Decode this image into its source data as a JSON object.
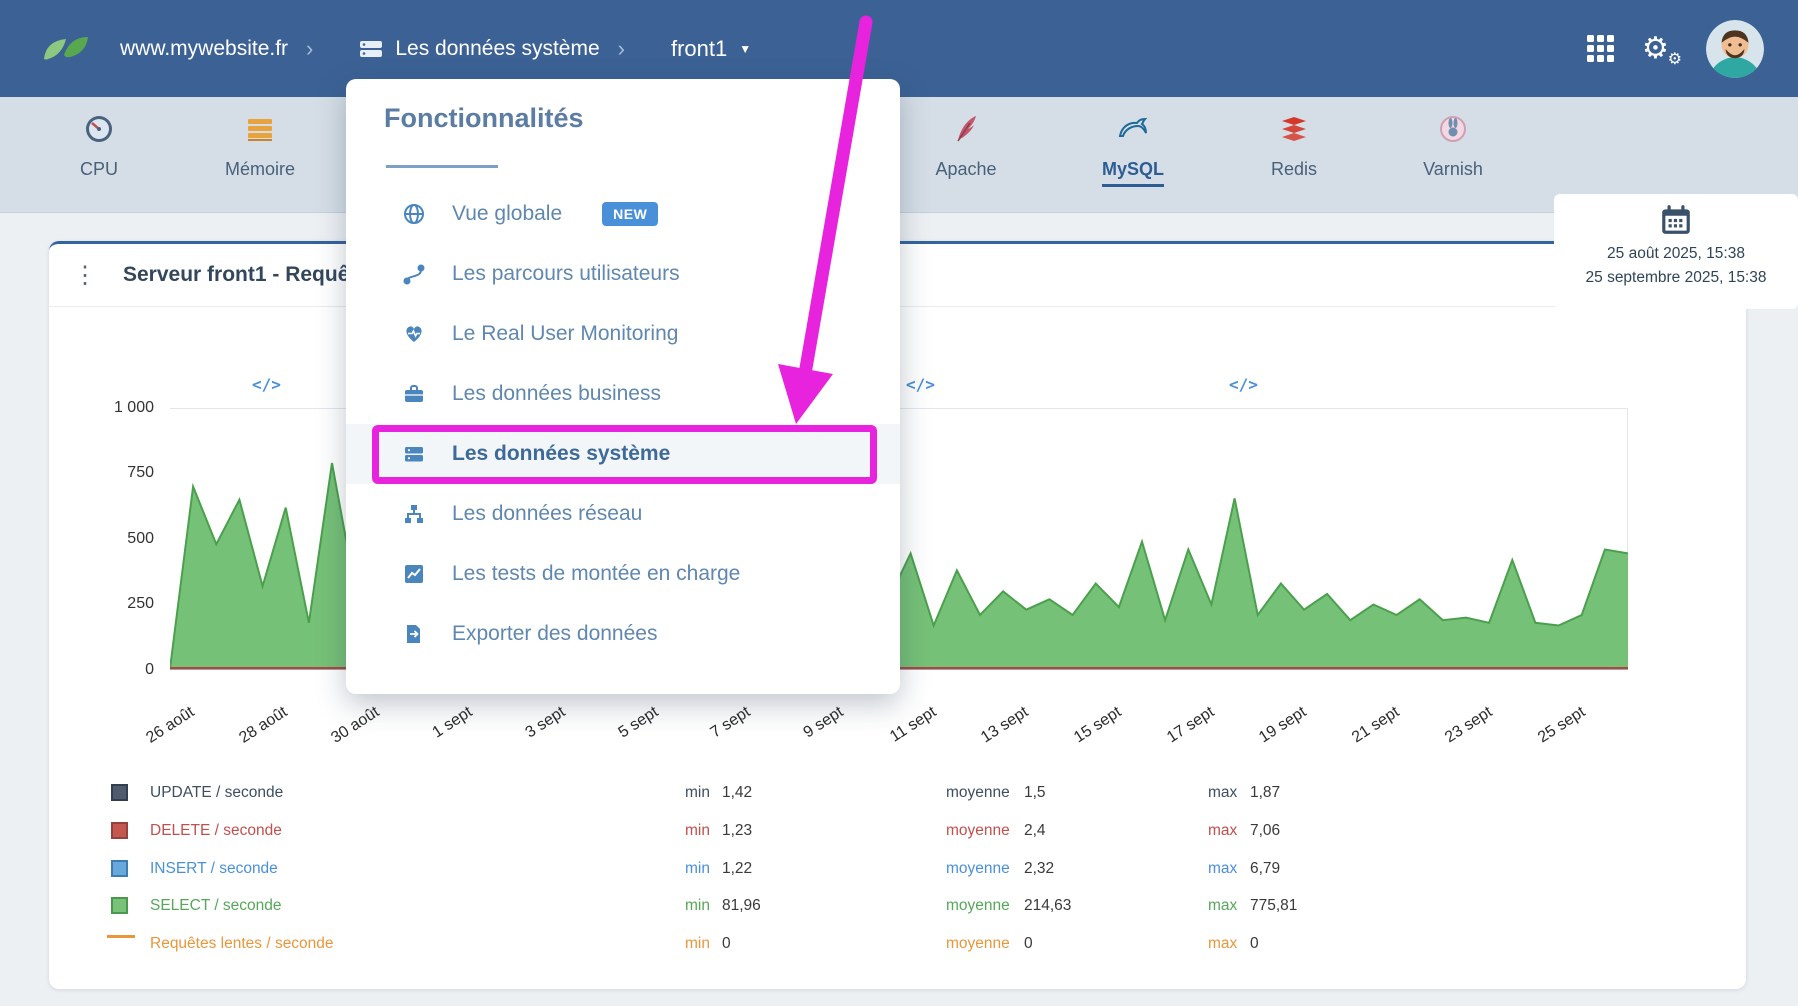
{
  "navbar": {
    "site": "www.mywebsite.fr",
    "separator": "›",
    "section": "Les données système",
    "server": "front1"
  },
  "tabbar": {
    "tabs": [
      {
        "label": "CPU",
        "icon": "gauge-icon"
      },
      {
        "label": "Mémoire",
        "icon": "memory-icon"
      },
      {
        "label": "Apache",
        "icon": "apache-feather-icon"
      },
      {
        "label": "MySQL",
        "icon": "mysql-dolphin-icon",
        "selected": true
      },
      {
        "label": "Redis",
        "icon": "redis-cube-icon"
      },
      {
        "label": "Varnish",
        "icon": "varnish-rabbit-icon"
      }
    ],
    "date_range": {
      "start": "25 août 2025, 15:38",
      "end": "25 septembre 2025, 15:38"
    }
  },
  "menu": {
    "title": "Fonctionnalités",
    "items": [
      {
        "label": "Vue globale",
        "icon": "globe-icon",
        "badge": "NEW"
      },
      {
        "label": "Les parcours utilisateurs",
        "icon": "user-journeys-icon"
      },
      {
        "label": "Le Real User Monitoring",
        "icon": "heart-pulse-icon"
      },
      {
        "label": "Les données business",
        "icon": "briefcase-icon"
      },
      {
        "label": "Les données système",
        "icon": "server-icon",
        "highlighted": true
      },
      {
        "label": "Les données réseau",
        "icon": "network-icon"
      },
      {
        "label": "Les tests de montée en charge",
        "icon": "load-test-chart-icon"
      },
      {
        "label": "Exporter des données",
        "icon": "export-icon"
      }
    ]
  },
  "card": {
    "title": "Serveur front1 - Requê"
  },
  "chart_markers": {
    "icon_text": "</>"
  },
  "chart_data": {
    "type": "area",
    "ylim": [
      0,
      1000
    ],
    "y_ticks": [
      "1 000",
      "750",
      "500",
      "250",
      "0"
    ],
    "x_ticks": [
      "26 août",
      "28 août",
      "30 août",
      "1 sept",
      "3 sept",
      "5 sept",
      "7 sept",
      "9 sept",
      "11 sept",
      "13 sept",
      "15 sept",
      "17 sept",
      "19 sept",
      "21 sept",
      "23 sept",
      "25 sept"
    ],
    "grid": "top gridline at 1000 and baseline only",
    "legend_position": "below-chart",
    "series": [
      {
        "name": "SELECT / seconde",
        "color": "#76c178",
        "stroke": "#4aa04c",
        "values": [
          5,
          700,
          480,
          650,
          320,
          620,
          180,
          790,
          310,
          160,
          530,
          170,
          300,
          150,
          220,
          180,
          260,
          200,
          310,
          170,
          240,
          190,
          280,
          160,
          230,
          200,
          320,
          180,
          250,
          210,
          170,
          260,
          445,
          170,
          380,
          210,
          300,
          230,
          270,
          210,
          330,
          240,
          490,
          190,
          460,
          250,
          655,
          210,
          330,
          230,
          290,
          190,
          250,
          210,
          270,
          190,
          200,
          180,
          420,
          180,
          170,
          210,
          460,
          445
        ]
      },
      {
        "name": "UPDATE / seconde",
        "color": "#4d5d6e",
        "values_note": "flat ~1.5/s at baseline"
      },
      {
        "name": "DELETE / seconde",
        "color": "#c0504d",
        "values_note": "flat ~2/s at baseline"
      },
      {
        "name": "INSERT / seconde",
        "color": "#4a90d9",
        "values_note": "flat ~2/s at baseline"
      },
      {
        "name": "Requêtes lentes / seconde",
        "color": "#e8973d",
        "values_note": "flat 0"
      }
    ]
  },
  "legend": {
    "min_label": "min",
    "avg_label": "moyenne",
    "max_label": "max",
    "rows": [
      {
        "label": "UPDATE / seconde",
        "color": "#4d5d6e",
        "min": "1,42",
        "avg": "1,5",
        "max": "1,87"
      },
      {
        "label": "DELETE / seconde",
        "color": "#c0504d",
        "min": "1,23",
        "avg": "2,4",
        "max": "7,06"
      },
      {
        "label": "INSERT / seconde",
        "color": "#4a90d9",
        "min": "1,22",
        "avg": "2,32",
        "max": "6,79"
      },
      {
        "label": "SELECT / seconde",
        "color": "#56a75a",
        "min": "81,96",
        "avg": "214,63",
        "max": "775,81"
      },
      {
        "label": "Requêtes lentes / seconde",
        "color": "#e8973d",
        "min": "0",
        "avg": "0",
        "max": "0"
      }
    ]
  },
  "annotation": {
    "highlight_color": "#e723dd",
    "highlighted_item": "Les données système"
  }
}
